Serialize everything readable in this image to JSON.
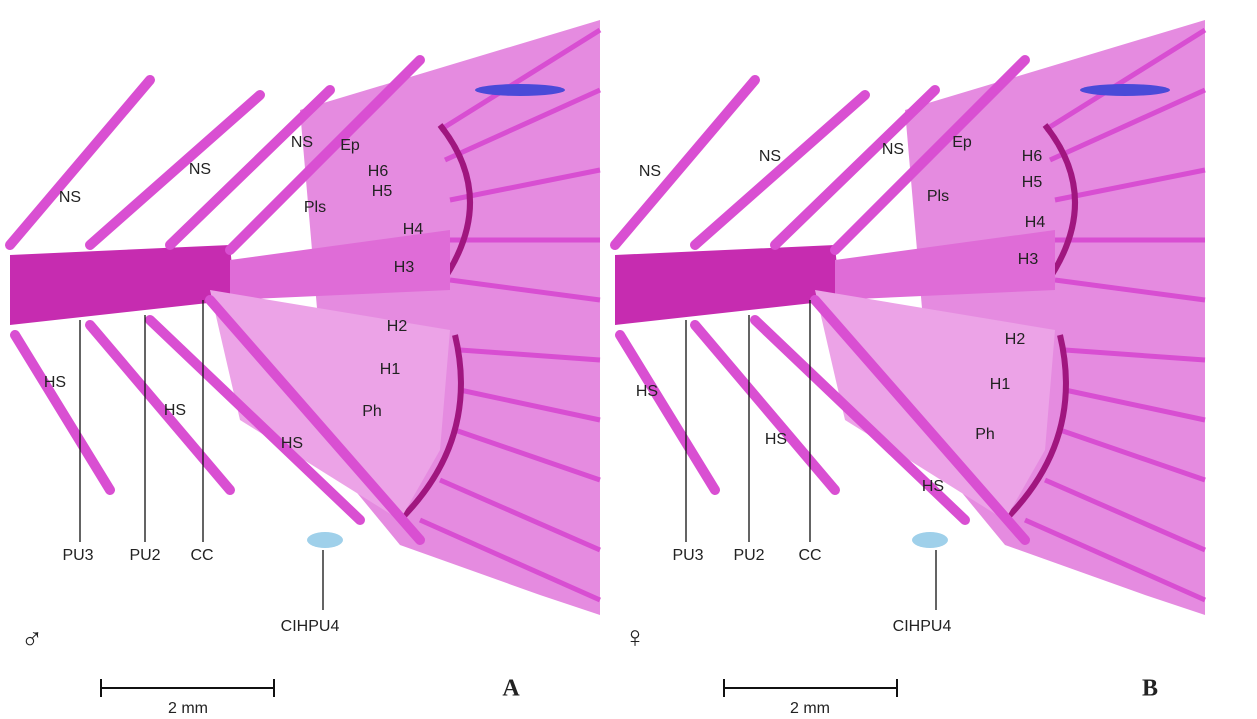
{
  "panels": [
    {
      "letter": "A",
      "sex": "♂",
      "scale_bar": "2 mm",
      "labels": [
        "NS",
        "NS",
        "NS",
        "Ep",
        "H6",
        "H5",
        "Pls",
        "H4",
        "H3",
        "H2",
        "H1",
        "Ph",
        "HS",
        "HS",
        "HS"
      ],
      "callouts": [
        "PU3",
        "PU2",
        "CC",
        "CIHPU4"
      ]
    },
    {
      "letter": "B",
      "sex": "♀",
      "scale_bar": "2 mm",
      "labels": [
        "NS",
        "NS",
        "NS",
        "Ep",
        "H6",
        "H5",
        "Pls",
        "H4",
        "H3",
        "H2",
        "H1",
        "Ph",
        "HS",
        "HS",
        "HS"
      ],
      "callouts": [
        "PU3",
        "PU2",
        "CC",
        "CIHPU4"
      ]
    }
  ]
}
